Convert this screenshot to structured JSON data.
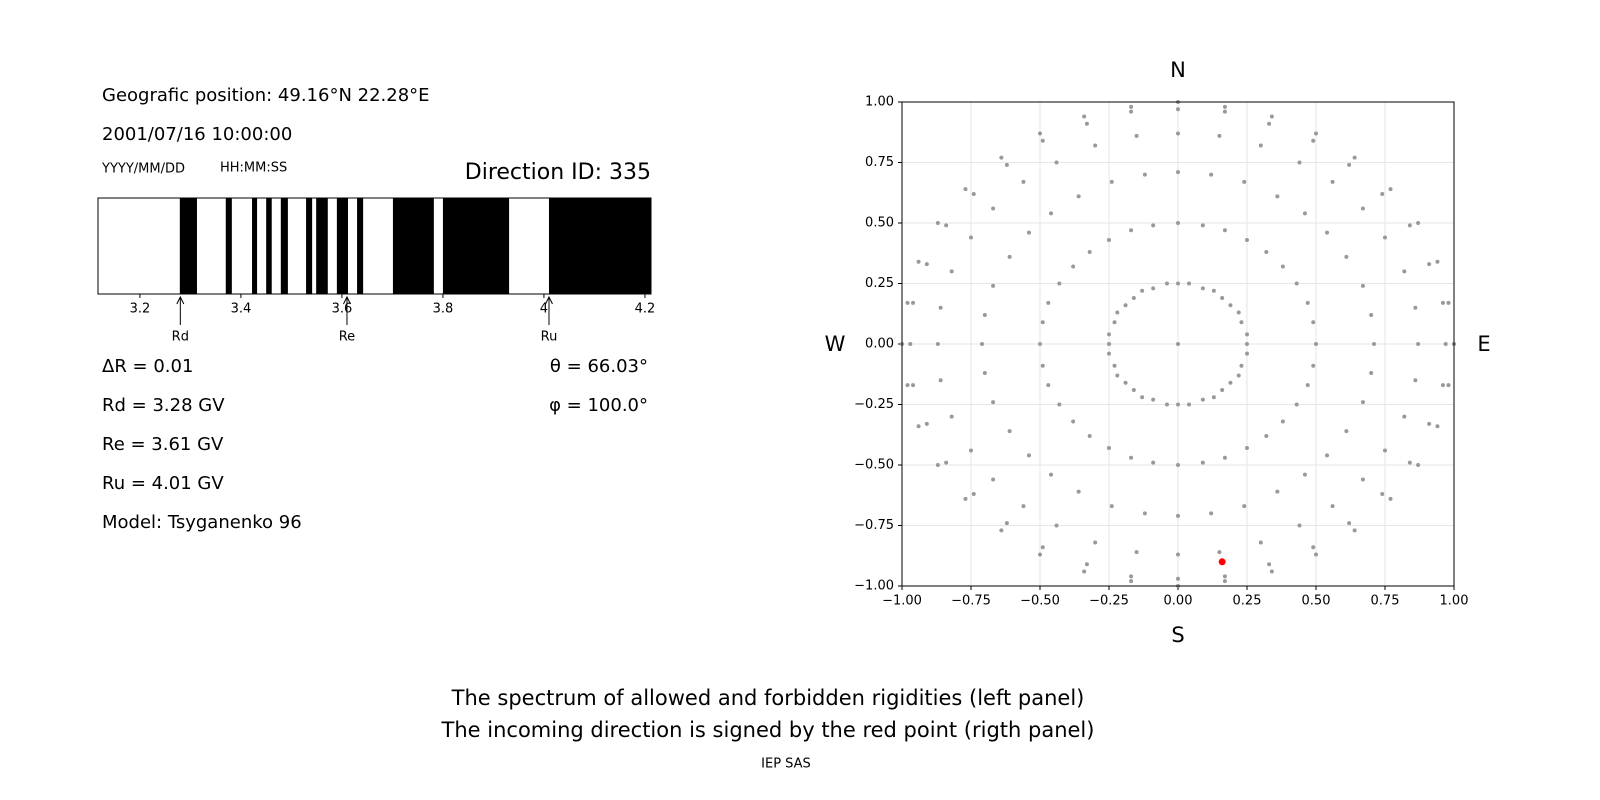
{
  "info": {
    "position": "Geografic position: 49.16°N 22.28°E",
    "datetime": "2001/07/16 10:00:00",
    "date_format": "YYYY/MM/DD",
    "time_format": "HH:MM:SS",
    "direction": "Direction ID: 335"
  },
  "parameters": [
    "ΔR = 0.01",
    "Rd = 3.28 GV",
    "Re = 3.61 GV",
    "Ru = 4.01 GV",
    "Model: Tsyganenko 96"
  ],
  "angles": [
    "θ = 66.03°",
    "φ = 100.0°"
  ],
  "footer": [
    "The spectrum of allowed and forbidden rigidities (left panel)",
    "The incoming direction is signed by the red point (rigth panel)"
  ],
  "credit": "IEP SAS",
  "chart_data": [
    {
      "type": "spectrum",
      "xlim": [
        3.117,
        4.212
      ],
      "xticks": [
        3.2,
        3.4,
        3.6,
        3.8,
        4.0,
        4.2
      ],
      "color": "#000000",
      "bands": [
        [
          3.279,
          3.313
        ],
        [
          3.37,
          3.382
        ],
        [
          3.422,
          3.432
        ],
        [
          3.45,
          3.461
        ],
        [
          3.479,
          3.493
        ],
        [
          3.529,
          3.541
        ],
        [
          3.549,
          3.572
        ],
        [
          3.59,
          3.612
        ],
        [
          3.63,
          3.642
        ],
        [
          3.701,
          3.782
        ],
        [
          3.8,
          3.931
        ],
        [
          4.01,
          4.212
        ]
      ],
      "markers": [
        {
          "label": "Rd",
          "value": 3.28
        },
        {
          "label": "Re",
          "value": 3.61
        },
        {
          "label": "Ru",
          "value": 4.01
        }
      ]
    },
    {
      "type": "scatter",
      "labels": {
        "top": "N",
        "bottom": "S",
        "left": "W",
        "right": "E"
      },
      "xlim": [
        -1,
        1
      ],
      "ylim": [
        -1,
        1
      ],
      "xticks": [
        {
          "value": -1,
          "label": "−1.00"
        },
        {
          "value": -0.75,
          "label": "−0.75"
        },
        {
          "value": -0.5,
          "label": "−0.50"
        },
        {
          "value": -0.25,
          "label": "−0.25"
        },
        {
          "value": 0,
          "label": "0.00"
        },
        {
          "value": 0.25,
          "label": "0.25"
        },
        {
          "value": 0.5,
          "label": "0.50"
        },
        {
          "value": 0.75,
          "label": "0.75"
        },
        {
          "value": 1,
          "label": "1.00"
        }
      ],
      "yticks": [
        {
          "value": -1,
          "label": "−1.00"
        },
        {
          "value": -0.75,
          "label": "−0.75"
        },
        {
          "value": -0.5,
          "label": "−0.50"
        },
        {
          "value": -0.25,
          "label": "−0.25"
        },
        {
          "value": 0,
          "label": "0.00"
        },
        {
          "value": 0.25,
          "label": "0.25"
        },
        {
          "value": 0.5,
          "label": "0.50"
        },
        {
          "value": 0.75,
          "label": "0.75"
        },
        {
          "value": 1,
          "label": "1.00"
        }
      ],
      "grid": true,
      "series": [
        {
          "color": "#999999",
          "x": [
            0
          ],
          "y": [
            0
          ]
        },
        {
          "color": "#999999",
          "x": [
            0,
            0.04,
            0.09,
            0.13,
            0.16,
            0.19,
            0.22,
            0.23,
            0.25,
            0.25,
            0.25,
            0.23,
            0.22,
            0.19,
            0.16,
            0.13,
            0.09,
            0.04,
            0,
            -0.04,
            -0.09,
            -0.13,
            -0.16,
            -0.19,
            -0.22,
            -0.23,
            -0.25,
            -0.25,
            -0.25,
            -0.23,
            -0.22,
            -0.19,
            -0.16,
            -0.13,
            -0.09,
            -0.04
          ],
          "y": [
            0.25,
            0.25,
            0.23,
            0.22,
            0.19,
            0.16,
            0.13,
            0.09,
            0.04,
            0,
            -0.04,
            -0.09,
            -0.13,
            -0.16,
            -0.19,
            -0.22,
            -0.23,
            -0.25,
            -0.25,
            -0.25,
            -0.23,
            -0.22,
            -0.19,
            -0.16,
            -0.13,
            -0.09,
            -0.04,
            0,
            0.04,
            0.09,
            0.13,
            0.16,
            0.19,
            0.22,
            0.23,
            0.25
          ]
        },
        {
          "color": "#999999",
          "x": [
            0,
            0.09,
            0.17,
            0.25,
            0.32,
            0.38,
            0.43,
            0.47,
            0.49,
            0.5,
            0.49,
            0.47,
            0.43,
            0.38,
            0.32,
            0.25,
            0.17,
            0.09,
            0,
            -0.09,
            -0.17,
            -0.25,
            -0.32,
            -0.38,
            -0.43,
            -0.47,
            -0.49,
            -0.5,
            -0.49,
            -0.47,
            -0.43,
            -0.38,
            -0.32,
            -0.25,
            -0.17,
            -0.09
          ],
          "y": [
            0.5,
            0.49,
            0.47,
            0.43,
            0.38,
            0.32,
            0.25,
            0.17,
            0.09,
            0,
            -0.09,
            -0.17,
            -0.25,
            -0.32,
            -0.38,
            -0.43,
            -0.47,
            -0.49,
            -0.5,
            -0.49,
            -0.47,
            -0.43,
            -0.38,
            -0.32,
            -0.25,
            -0.17,
            -0.09,
            0,
            0.09,
            0.17,
            0.25,
            0.32,
            0.38,
            0.43,
            0.47,
            0.49
          ]
        },
        {
          "color": "#999999",
          "x": [
            0,
            0.12,
            0.24,
            0.36,
            0.46,
            0.54,
            0.61,
            0.67,
            0.7,
            0.71,
            0.7,
            0.67,
            0.61,
            0.54,
            0.46,
            0.36,
            0.24,
            0.12,
            0,
            -0.12,
            -0.24,
            -0.36,
            -0.46,
            -0.54,
            -0.61,
            -0.67,
            -0.7,
            -0.71,
            -0.7,
            -0.67,
            -0.61,
            -0.54,
            -0.46,
            -0.36,
            -0.24,
            -0.12
          ],
          "y": [
            0.71,
            0.7,
            0.67,
            0.61,
            0.54,
            0.46,
            0.36,
            0.24,
            0.12,
            0,
            -0.12,
            -0.24,
            -0.36,
            -0.46,
            -0.54,
            -0.61,
            -0.67,
            -0.7,
            -0.71,
            -0.7,
            -0.67,
            -0.61,
            -0.54,
            -0.46,
            -0.36,
            -0.24,
            -0.12,
            0,
            0.12,
            0.24,
            0.36,
            0.46,
            0.54,
            0.61,
            0.67,
            0.7
          ]
        },
        {
          "color": "#999999",
          "x": [
            0,
            0.15,
            0.3,
            0.44,
            0.56,
            0.67,
            0.75,
            0.82,
            0.86,
            0.87,
            0.86,
            0.82,
            0.75,
            0.67,
            0.56,
            0.44,
            0.3,
            0.15,
            0,
            -0.15,
            -0.3,
            -0.44,
            -0.56,
            -0.67,
            -0.75,
            -0.82,
            -0.86,
            -0.87,
            -0.86,
            -0.82,
            -0.75,
            -0.67,
            -0.56,
            -0.44,
            -0.3,
            -0.15
          ],
          "y": [
            0.87,
            0.86,
            0.82,
            0.75,
            0.67,
            0.56,
            0.44,
            0.3,
            0.15,
            0,
            -0.15,
            -0.3,
            -0.44,
            -0.56,
            -0.67,
            -0.75,
            -0.82,
            -0.86,
            -0.87,
            -0.86,
            -0.82,
            -0.75,
            -0.67,
            -0.56,
            -0.44,
            -0.3,
            -0.15,
            0,
            0.15,
            0.3,
            0.44,
            0.56,
            0.67,
            0.75,
            0.82,
            0.86
          ]
        },
        {
          "color": "#999999",
          "x": [
            0,
            0.17,
            0.33,
            0.49,
            0.62,
            0.74,
            0.84,
            0.91,
            0.96,
            0.97,
            0.96,
            0.91,
            0.84,
            0.74,
            0.62,
            0.49,
            0.33,
            0.17,
            0,
            -0.17,
            -0.33,
            -0.49,
            -0.62,
            -0.74,
            -0.84,
            -0.91,
            -0.96,
            -0.97,
            -0.96,
            -0.91,
            -0.84,
            -0.74,
            -0.62,
            -0.49,
            -0.33,
            -0.17
          ],
          "y": [
            0.97,
            0.96,
            0.91,
            0.84,
            0.74,
            0.62,
            0.49,
            0.33,
            0.17,
            0,
            -0.17,
            -0.33,
            -0.49,
            -0.62,
            -0.74,
            -0.84,
            -0.91,
            -0.96,
            -0.97,
            -0.96,
            -0.91,
            -0.84,
            -0.74,
            -0.62,
            -0.49,
            -0.33,
            -0.17,
            0,
            0.17,
            0.33,
            0.49,
            0.62,
            0.74,
            0.84,
            0.91,
            0.96
          ]
        },
        {
          "color": "#999999",
          "x": [
            0,
            0.17,
            0.34,
            0.5,
            0.64,
            0.77,
            0.87,
            0.94,
            0.98,
            1,
            0.98,
            0.94,
            0.87,
            0.77,
            0.64,
            0.5,
            0.34,
            0.17,
            0,
            -0.17,
            -0.34,
            -0.5,
            -0.64,
            -0.77,
            -0.87,
            -0.94,
            -0.98,
            -1,
            -0.98,
            -0.94,
            -0.87,
            -0.77,
            -0.64,
            -0.5,
            -0.34,
            -0.17
          ],
          "y": [
            1,
            0.98,
            0.94,
            0.87,
            0.77,
            0.64,
            0.5,
            0.34,
            0.17,
            0,
            -0.17,
            -0.34,
            -0.5,
            -0.64,
            -0.77,
            -0.87,
            -0.94,
            -0.98,
            -1,
            -0.98,
            -0.94,
            -0.87,
            -0.77,
            -0.64,
            -0.5,
            -0.34,
            -0.17,
            0,
            0.17,
            0.34,
            0.5,
            0.64,
            0.77,
            0.87,
            0.94,
            0.98
          ]
        },
        {
          "color": "#ff0000",
          "x": [
            0.16
          ],
          "y": [
            -0.9
          ]
        }
      ]
    }
  ]
}
